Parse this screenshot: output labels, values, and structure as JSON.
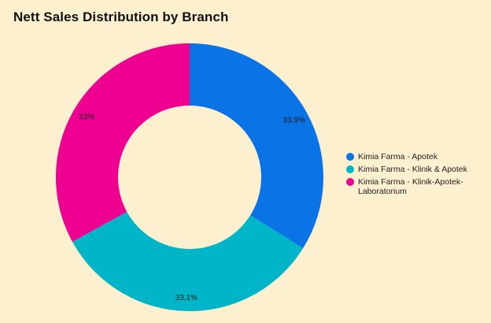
{
  "title": "Nett Sales Distribution by Branch",
  "chart_data": {
    "type": "pie",
    "donut": true,
    "title": "Nett Sales Distribution by Branch",
    "slices": [
      {
        "label": "Kimia Farma - Apotek",
        "value": 33.9,
        "display": "33.9%",
        "color": "#0a73e6"
      },
      {
        "label": "Kimia Farma - Klinik & Apotek",
        "value": 33.1,
        "display": "33.1%",
        "color": "#00b5c8"
      },
      {
        "label": "Kimia Farma - Klinik-Apotek-Laboratorium",
        "value": 33.0,
        "display": "33%",
        "color": "#ee0091"
      }
    ],
    "legend_position": "right"
  }
}
